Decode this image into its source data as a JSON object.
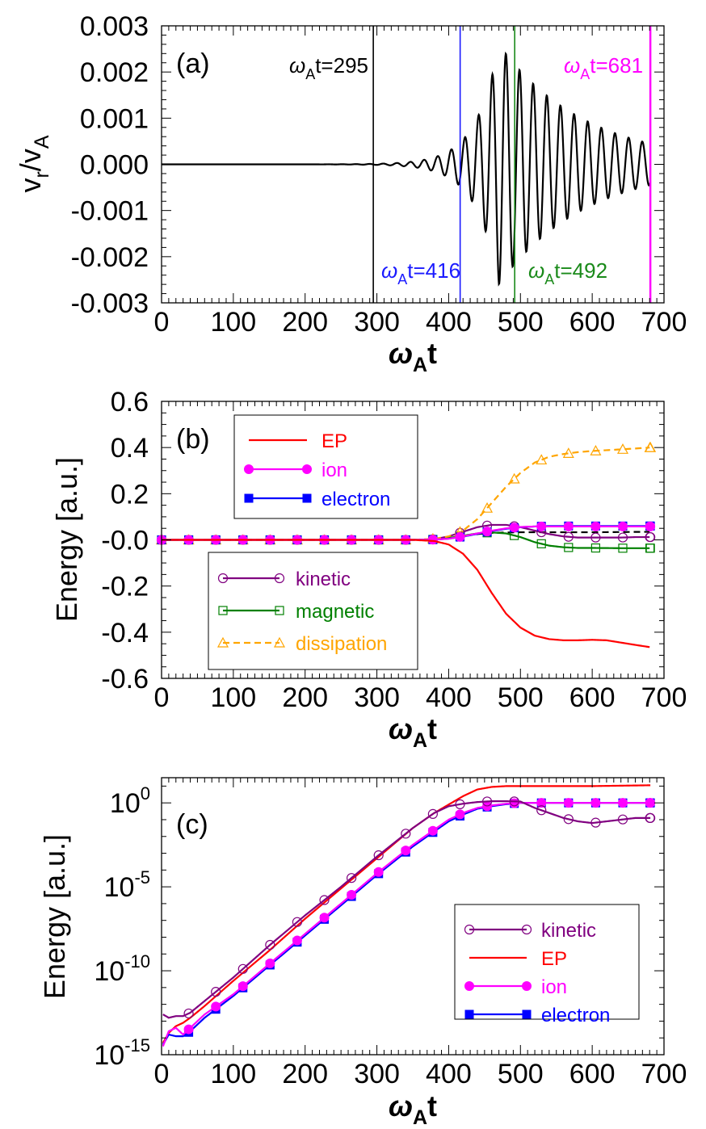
{
  "chart_data": [
    {
      "id": "a",
      "type": "line",
      "panel_label": "(a)",
      "ylabel_main": "v",
      "ylabel_sub1": "r",
      "ylabel_mid": "/v",
      "ylabel_sub2": "A",
      "xlabel_main": "ω",
      "xlabel_sub": "A",
      "xlabel_tail": "t",
      "xlim": [
        0,
        700
      ],
      "ylim": [
        -0.003,
        0.003
      ],
      "xticks": [
        "0",
        "100",
        "200",
        "300",
        "400",
        "500",
        "600",
        "700"
      ],
      "yticks": [
        "-0.003",
        "-0.002",
        "-0.001",
        "0.000",
        "0.001",
        "0.002",
        "0.003"
      ],
      "oscillation": {
        "growth_start": 220,
        "peak_time": 470,
        "peak_amplitude": 0.0026,
        "end_amplitude": 0.00045,
        "period": 19,
        "end_time": 681
      },
      "markers": [
        {
          "x": 295,
          "text_pre": "ω",
          "text_sub": "A",
          "text_post": "t=295",
          "color": "#000000"
        },
        {
          "x": 416,
          "text_pre": "ω",
          "text_sub": "A",
          "text_post": "t=416",
          "color": "#1a1aff"
        },
        {
          "x": 492,
          "text_pre": "ω",
          "text_sub": "A",
          "text_post": "t=492",
          "color": "#1a8a1a"
        },
        {
          "x": 681,
          "text_pre": "ω",
          "text_sub": "A",
          "text_post": "t=681",
          "color": "#ff00ff"
        }
      ]
    },
    {
      "id": "b",
      "type": "line",
      "panel_label": "(b)",
      "ylabel": "Energy [a.u.]",
      "xlabel_main": "ω",
      "xlabel_sub": "A",
      "xlabel_tail": "t",
      "xlim": [
        0,
        700
      ],
      "ylim": [
        -0.6,
        0.6
      ],
      "xticks": [
        "0",
        "100",
        "200",
        "300",
        "400",
        "500",
        "600",
        "700"
      ],
      "yticks": [
        "-0.6",
        "-0.4",
        "-0.2",
        "-0.0",
        "0.2",
        "0.4",
        "0.6"
      ],
      "legend_upper": [
        "EP",
        "ion",
        "electron"
      ],
      "legend_lower": [
        "kinetic",
        "magnetic",
        "dissipation"
      ],
      "series": [
        {
          "name": "EP",
          "color": "#ff0000",
          "x": [
            0,
            350,
            380,
            400,
            420,
            440,
            460,
            480,
            500,
            520,
            540,
            560,
            580,
            600,
            620,
            640,
            660,
            681
          ],
          "y": [
            0,
            0,
            -0.005,
            -0.02,
            -0.06,
            -0.13,
            -0.23,
            -0.32,
            -0.38,
            -0.415,
            -0.43,
            -0.435,
            -0.435,
            -0.433,
            -0.435,
            -0.445,
            -0.455,
            -0.465
          ]
        },
        {
          "name": "ion",
          "color": "#ff00ff",
          "x": [
            0,
            350,
            380,
            400,
            420,
            440,
            460,
            480,
            500,
            520,
            540,
            560,
            600,
            640,
            681
          ],
          "y": [
            0,
            0,
            0.001,
            0.005,
            0.015,
            0.028,
            0.04,
            0.05,
            0.056,
            0.058,
            0.058,
            0.058,
            0.058,
            0.058,
            0.058
          ]
        },
        {
          "name": "electron",
          "color": "#0000ff",
          "x": [
            0,
            350,
            380,
            400,
            420,
            440,
            460,
            480,
            500,
            520,
            540,
            560,
            600,
            640,
            681
          ],
          "y": [
            0,
            0,
            0.001,
            0.005,
            0.014,
            0.026,
            0.038,
            0.048,
            0.055,
            0.058,
            0.06,
            0.06,
            0.06,
            0.06,
            0.06
          ]
        },
        {
          "name": "kinetic",
          "color": "#800080",
          "x": [
            0,
            350,
            380,
            400,
            420,
            440,
            460,
            480,
            500,
            520,
            540,
            560,
            580,
            600,
            620,
            640,
            660,
            681
          ],
          "y": [
            0,
            0,
            0.003,
            0.015,
            0.035,
            0.055,
            0.065,
            0.065,
            0.055,
            0.04,
            0.025,
            0.015,
            0.01,
            0.01,
            0.01,
            0.01,
            0.012,
            0.012
          ]
        },
        {
          "name": "magnetic",
          "color": "#008000",
          "x": [
            0,
            350,
            380,
            400,
            420,
            440,
            460,
            480,
            500,
            520,
            540,
            560,
            580,
            600,
            640,
            681
          ],
          "y": [
            0,
            0,
            0.002,
            0.008,
            0.018,
            0.028,
            0.032,
            0.028,
            0.012,
            -0.01,
            -0.025,
            -0.032,
            -0.035,
            -0.035,
            -0.036,
            -0.036
          ]
        },
        {
          "name": "dissipation",
          "color": "#ffa500",
          "x": [
            0,
            350,
            380,
            400,
            420,
            440,
            460,
            480,
            500,
            520,
            540,
            560,
            580,
            600,
            640,
            681
          ],
          "y": [
            0,
            0,
            0.005,
            0.015,
            0.04,
            0.09,
            0.16,
            0.23,
            0.29,
            0.335,
            0.36,
            0.372,
            0.38,
            0.385,
            0.392,
            0.4
          ]
        },
        {
          "name": "",
          "color": "#000000",
          "dash": true,
          "x": [
            0,
            350,
            380,
            400,
            420,
            440,
            460,
            480,
            500,
            520,
            540,
            560,
            600,
            640,
            681
          ],
          "y": [
            0,
            0,
            0.002,
            0.008,
            0.017,
            0.025,
            0.03,
            0.032,
            0.033,
            0.033,
            0.033,
            0.033,
            0.033,
            0.034,
            0.035
          ]
        }
      ]
    },
    {
      "id": "c",
      "type": "line",
      "panel_label": "(c)",
      "ylabel": "Energy [a.u.]",
      "xlabel_main": "ω",
      "xlabel_sub": "A",
      "xlabel_tail": "t",
      "xlim": [
        0,
        700
      ],
      "ylim_log10": [
        -15,
        1.5
      ],
      "yscale": "log",
      "xticks": [
        "0",
        "100",
        "200",
        "300",
        "400",
        "500",
        "600",
        "700"
      ],
      "yticks": [
        {
          "base": "10",
          "exp": "0"
        },
        {
          "base": "10",
          "exp": "-5"
        },
        {
          "base": "10",
          "exp": "-10"
        },
        {
          "base": "10",
          "exp": "-15"
        }
      ],
      "legend": [
        "kinetic",
        "EP",
        "ion",
        "electron"
      ],
      "series": [
        {
          "name": "kinetic",
          "color": "#800080",
          "x": [
            2,
            10,
            20,
            30,
            40,
            60,
            100,
            150,
            200,
            250,
            300,
            350,
            380,
            400,
            420,
            440,
            460,
            480,
            500,
            520,
            540,
            560,
            580,
            600,
            620,
            640,
            660,
            681
          ],
          "y_log10": [
            -12.6,
            -12.8,
            -12.7,
            -12.7,
            -12.5,
            -11.8,
            -10.4,
            -8.5,
            -6.7,
            -5,
            -3.2,
            -1.5,
            -0.6,
            -0.2,
            -0.05,
            0.05,
            0.1,
            0.1,
            0.08,
            -0.3,
            -0.6,
            -0.9,
            -1.1,
            -1.2,
            -1.1,
            -1.0,
            -0.9,
            -0.9
          ]
        },
        {
          "name": "EP",
          "color": "#ff0000",
          "x": [
            2,
            10,
            20,
            30,
            40,
            60,
            100,
            150,
            200,
            250,
            300,
            350,
            380,
            400,
            420,
            440,
            460,
            480,
            500,
            540,
            600,
            681
          ],
          "y_log10": [
            -14.3,
            -13.7,
            -13.3,
            -13.1,
            -12.8,
            -12.1,
            -10.6,
            -8.8,
            -6.9,
            -5.1,
            -3.3,
            -1.5,
            -0.6,
            -0.1,
            0.4,
            0.8,
            0.95,
            1.0,
            1.0,
            1.0,
            1.0,
            1.05
          ]
        },
        {
          "name": "ion",
          "color": "#ff00ff",
          "x": [
            2,
            10,
            20,
            30,
            40,
            60,
            100,
            150,
            200,
            250,
            300,
            350,
            380,
            400,
            420,
            440,
            460,
            480,
            500,
            540,
            600,
            681
          ],
          "y_log10": [
            -14.5,
            -13.6,
            -13.4,
            -13.8,
            -13.4,
            -12.6,
            -11.4,
            -9.6,
            -7.8,
            -6.0,
            -4.2,
            -2.5,
            -1.6,
            -1.0,
            -0.6,
            -0.3,
            -0.15,
            -0.05,
            0.0,
            0.0,
            0.0,
            0.0
          ]
        },
        {
          "name": "electron",
          "color": "#0000ff",
          "x": [
            2,
            10,
            20,
            30,
            40,
            60,
            100,
            150,
            200,
            250,
            300,
            350,
            380,
            400,
            420,
            440,
            460,
            480,
            500,
            540,
            600,
            681
          ],
          "y_log10": [
            -14.4,
            -13.8,
            -13.9,
            -13.9,
            -13.6,
            -12.8,
            -11.5,
            -9.7,
            -7.9,
            -6.1,
            -4.3,
            -2.6,
            -1.7,
            -1.1,
            -0.7,
            -0.35,
            -0.2,
            -0.08,
            0.0,
            0.0,
            0.0,
            0.0
          ]
        }
      ]
    }
  ]
}
